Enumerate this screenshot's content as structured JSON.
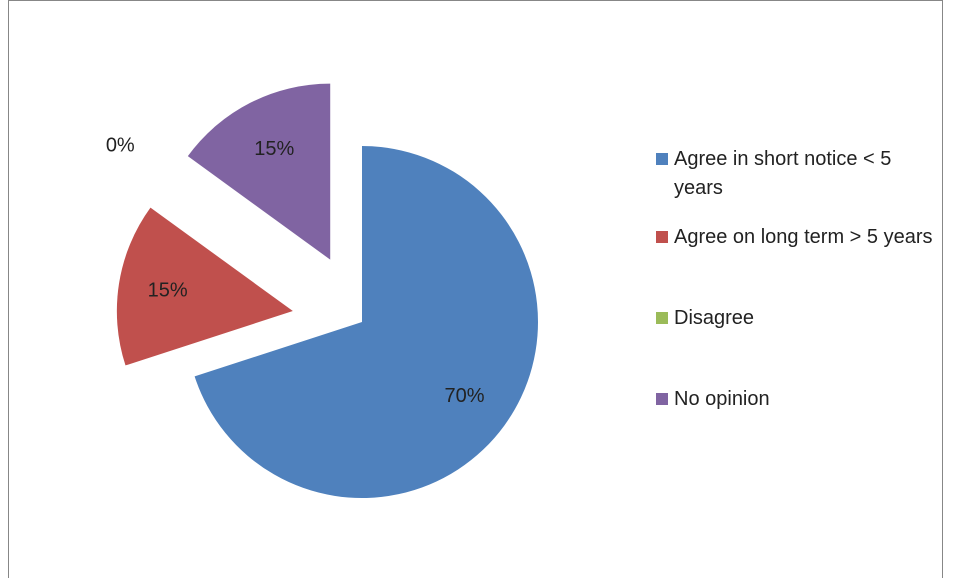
{
  "chart_data": {
    "type": "pie",
    "title": "",
    "exploded": true,
    "legend_position": "right",
    "slices": [
      {
        "name": "Agree in short notice < 5 years",
        "value": 70,
        "label": "70%",
        "color": "#4F81BD"
      },
      {
        "name": "Agree on long term > 5 years",
        "value": 15,
        "label": "15%",
        "color": "#C0504D"
      },
      {
        "name": "Disagree",
        "value": 0,
        "label": "0%",
        "color": "#9BBB59"
      },
      {
        "name": "No opinion",
        "value": 15,
        "label": "15%",
        "color": "#8064A2"
      }
    ]
  }
}
